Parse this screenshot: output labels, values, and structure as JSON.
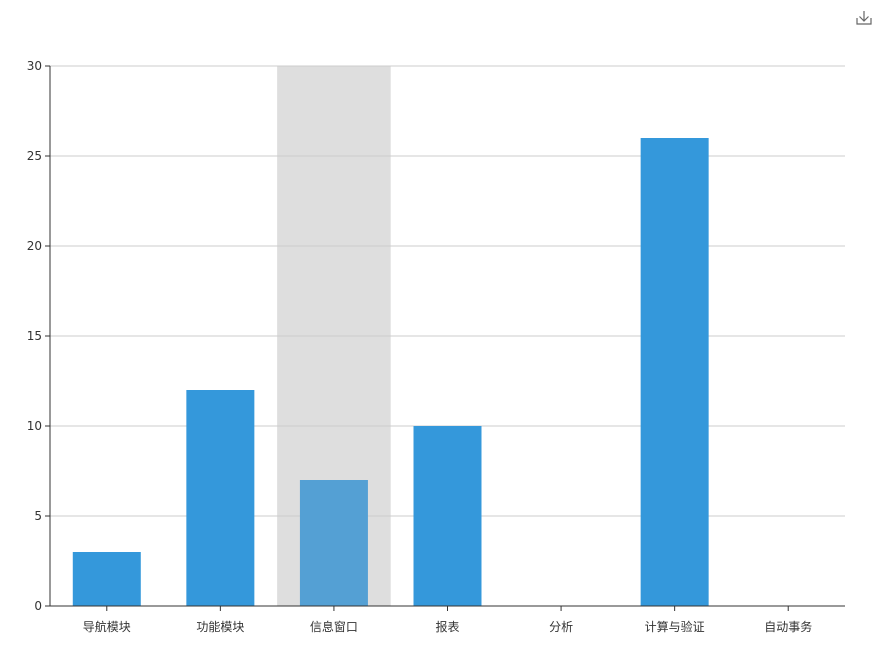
{
  "toolbar": {
    "download_icon": "download-icon"
  },
  "colors": {
    "bar": "#3498db",
    "bar_highlight": "#54a0d4",
    "hover_band": "#dedede",
    "grid": "#cccccc",
    "axis": "#333333"
  },
  "chart_data": {
    "type": "bar",
    "categories": [
      "导航模块",
      "功能模块",
      "信息窗口",
      "报表",
      "分析",
      "计算与验证",
      "自动事务"
    ],
    "values": [
      3,
      12,
      7,
      10,
      0,
      26,
      0
    ],
    "ylim": [
      0,
      30
    ],
    "yticks": [
      0,
      5,
      10,
      15,
      20,
      25,
      30
    ],
    "grid": true,
    "highlighted_category": "信息窗口"
  }
}
